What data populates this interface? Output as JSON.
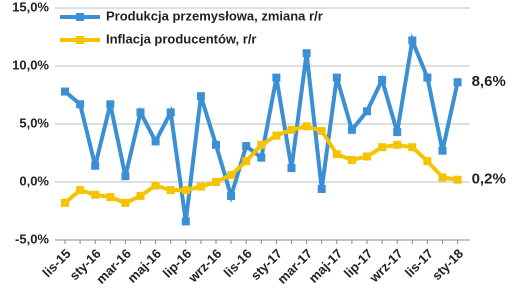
{
  "chart_data": {
    "type": "line",
    "categories": [
      "lis-15",
      null,
      "sty-16",
      null,
      "mar-16",
      null,
      "maj-16",
      null,
      "lip-16",
      null,
      "wrz-16",
      null,
      "lis-16",
      null,
      "sty-17",
      null,
      "mar-17",
      null,
      "maj-17",
      null,
      "lip-17",
      null,
      "wrz-17",
      null,
      "lis-17",
      null,
      "sty-18"
    ],
    "series": [
      {
        "name": "Produkcja przemysłowa, zmiana r/r",
        "color": "#3b8fd4",
        "values": [
          7.8,
          6.7,
          1.4,
          6.7,
          0.5,
          6.0,
          3.5,
          6.0,
          -3.4,
          7.4,
          3.2,
          -1.2,
          3.1,
          2.1,
          9.0,
          1.2,
          11.1,
          -0.6,
          9.0,
          4.5,
          6.1,
          8.8,
          4.3,
          12.2,
          9.0,
          2.7,
          8.6
        ],
        "value_labels": [
          null,
          null,
          null,
          null,
          null,
          null,
          null,
          null,
          null,
          null,
          null,
          null,
          null,
          null,
          null,
          null,
          null,
          null,
          null,
          null,
          null,
          null,
          null,
          null,
          null,
          null,
          "8,6%"
        ]
      },
      {
        "name": "Inflacja producentów, r/r",
        "color": "#f5c400",
        "values": [
          -1.8,
          -0.7,
          -1.1,
          -1.3,
          -1.8,
          -1.2,
          -0.3,
          -0.7,
          -0.7,
          -0.4,
          0.0,
          0.6,
          1.8,
          3.2,
          4.0,
          4.5,
          4.8,
          4.4,
          2.4,
          1.9,
          2.2,
          3.0,
          3.2,
          3.0,
          1.8,
          0.4,
          0.2
        ],
        "value_labels": [
          null,
          null,
          null,
          null,
          null,
          null,
          null,
          null,
          null,
          null,
          null,
          null,
          null,
          null,
          null,
          null,
          null,
          null,
          null,
          null,
          null,
          null,
          null,
          null,
          null,
          null,
          "0,2%"
        ]
      }
    ],
    "ylim": [
      -5,
      15
    ],
    "yticks": [
      {
        "value": -5,
        "label": "-5,0%"
      },
      {
        "value": 0,
        "label": "0,0%"
      },
      {
        "value": 5,
        "label": "5,0%"
      },
      {
        "value": 10,
        "label": "10,0%"
      },
      {
        "value": 15,
        "label": "15,0%"
      }
    ],
    "grid": true,
    "legend": "top-left"
  }
}
